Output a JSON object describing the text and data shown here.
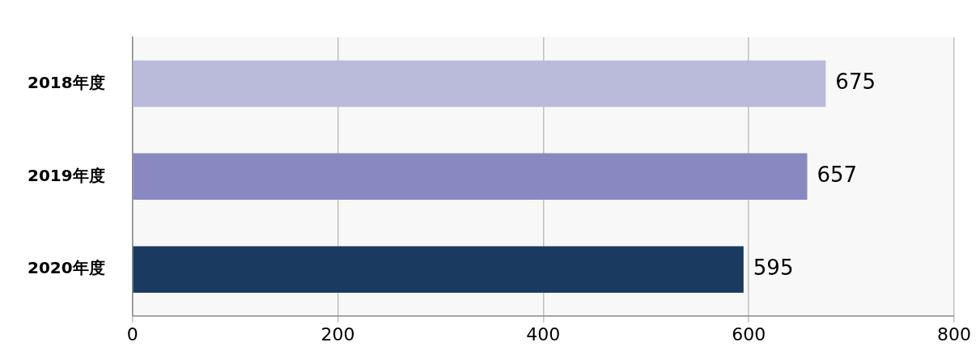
{
  "chart_data": {
    "type": "bar",
    "orientation": "horizontal",
    "categories": [
      "2018年度",
      "2019年度",
      "2020年度"
    ],
    "values": [
      675,
      657,
      595
    ],
    "colors": [
      "#babbdb",
      "#8988c0",
      "#1b3a5f"
    ],
    "xlim": [
      0,
      800
    ],
    "xticks": [
      0,
      200,
      400,
      600,
      800
    ],
    "grid": "x",
    "data_labels": true
  }
}
